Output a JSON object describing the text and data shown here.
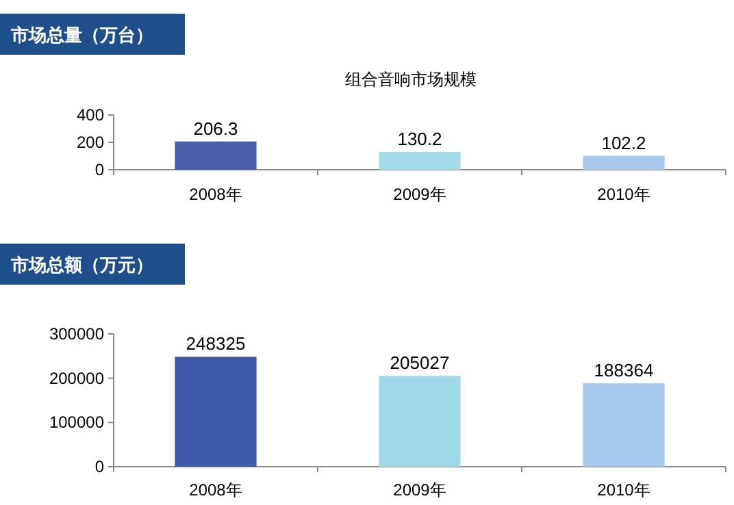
{
  "chart_data": [
    {
      "type": "bar",
      "title": "市场总量（万台）",
      "subtitle": "组合音响市场规模",
      "categories": [
        "2008年",
        "2009年",
        "2010年"
      ],
      "values": [
        206.3,
        130.2,
        102.2
      ],
      "colors": [
        "#4a5eab",
        "#a6dcea",
        "#a9c8ea"
      ],
      "ylim": [
        0,
        400
      ],
      "yticks": [
        0,
        200,
        400
      ],
      "data_labels": true
    },
    {
      "type": "bar",
      "title": "市场总额（万元）",
      "categories": [
        "2008年",
        "2009年",
        "2010年"
      ],
      "values": [
        248325,
        205027,
        188364
      ],
      "colors": [
        "#3f58a8",
        "#9fd9e8",
        "#a8c8ec"
      ],
      "ylim": [
        0,
        300000
      ],
      "yticks": [
        0,
        100000,
        200000,
        300000
      ],
      "data_labels": true
    }
  ]
}
